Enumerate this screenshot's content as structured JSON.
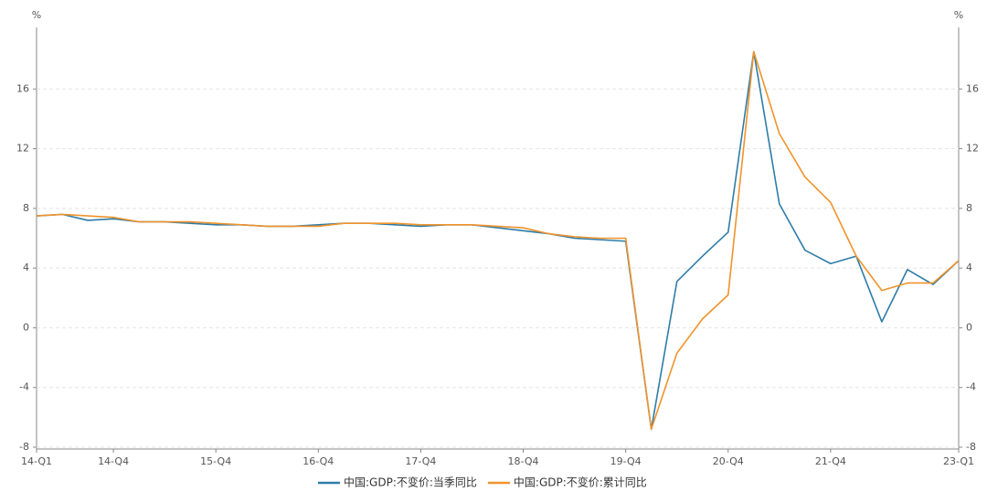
{
  "chart_data": {
    "type": "line",
    "y_unit": "%",
    "y2_unit": "%",
    "categories": [
      "14-Q1",
      null,
      null,
      "14-Q4",
      null,
      null,
      null,
      "15-Q4",
      null,
      null,
      null,
      "16-Q4",
      null,
      null,
      null,
      "17-Q4",
      null,
      null,
      null,
      "18-Q4",
      null,
      null,
      null,
      "19-Q4",
      null,
      null,
      null,
      "20-Q4",
      null,
      null,
      null,
      "21-Q4",
      null,
      null,
      null,
      null,
      "23-Q1"
    ],
    "series": [
      {
        "name": "中国:GDP:不变价:当季同比",
        "color": "#2e7ca8",
        "values": [
          7.5,
          7.6,
          7.2,
          7.3,
          7.1,
          7.1,
          7.0,
          6.9,
          6.9,
          6.8,
          6.8,
          6.9,
          7.0,
          7.0,
          6.9,
          6.8,
          6.9,
          6.9,
          6.7,
          6.5,
          6.3,
          6.0,
          5.9,
          5.8,
          -6.8,
          3.1,
          4.8,
          6.4,
          18.5,
          8.3,
          5.2,
          4.3,
          4.8,
          0.4,
          3.9,
          2.9,
          4.5
        ]
      },
      {
        "name": "中国:GDP:不变价:累计同比",
        "color": "#f0932b",
        "values": [
          7.5,
          7.6,
          7.5,
          7.4,
          7.1,
          7.1,
          7.1,
          7.0,
          6.9,
          6.8,
          6.8,
          6.8,
          7.0,
          7.0,
          7.0,
          6.9,
          6.9,
          6.9,
          6.8,
          6.7,
          6.3,
          6.1,
          6.0,
          6.0,
          -6.8,
          -1.7,
          0.6,
          2.2,
          18.5,
          13.0,
          10.1,
          8.4,
          4.8,
          2.5,
          3.0,
          3.0,
          4.5
        ]
      }
    ],
    "ylim": [
      -8,
      20
    ],
    "yticks": [
      -8,
      -4,
      0,
      4,
      8,
      12,
      16
    ],
    "y2lim": [
      -8,
      20
    ],
    "y2ticks": [
      -8,
      -4,
      0,
      4,
      8,
      12,
      16
    ],
    "grid": true
  }
}
